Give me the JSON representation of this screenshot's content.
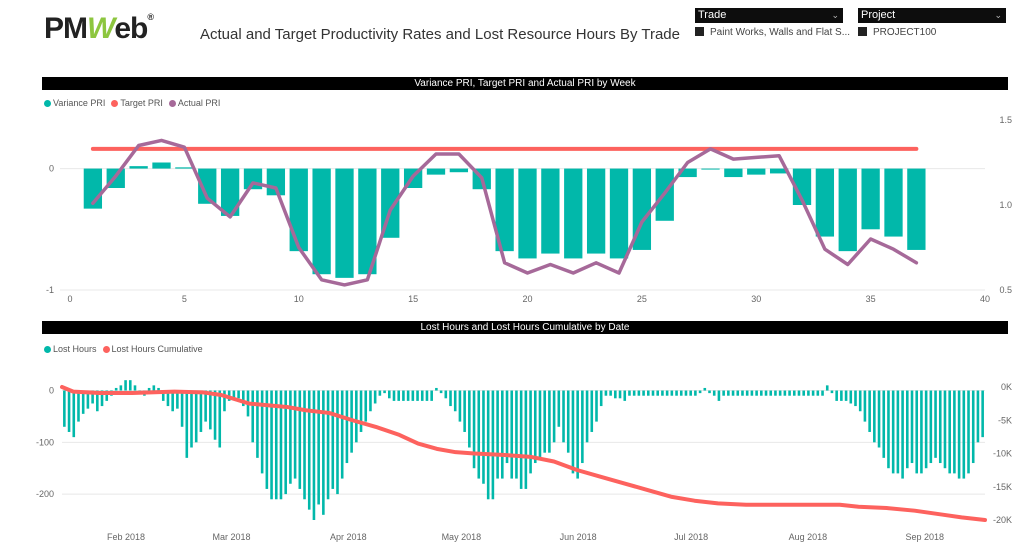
{
  "header": {
    "logo_text": "PMWeb",
    "logo_part1": "PM",
    "logo_part2": "W",
    "logo_part3": "eb",
    "logo_reg": "®",
    "title": "Actual and Target Productivity Rates and Lost Resource Hours By Trade"
  },
  "slicers": {
    "trade": {
      "label": "Trade",
      "selected": "Paint Works, Walls and Flat S..."
    },
    "project": {
      "label": "Project",
      "selected": "PROJECT100"
    }
  },
  "colors": {
    "teal": "#01b8aa",
    "red": "#fd625e",
    "purple": "#a66999"
  },
  "chart_data": [
    {
      "type": "bar+line",
      "title": "Variance PRI, Target PRI and Actual PRI by Week",
      "legend": [
        "Variance PRI",
        "Target PRI",
        "Actual PRI"
      ],
      "legend_position": "top-left",
      "x": [
        1,
        2,
        3,
        4,
        5,
        6,
        7,
        8,
        9,
        10,
        11,
        12,
        13,
        14,
        15,
        16,
        17,
        18,
        19,
        20,
        21,
        22,
        23,
        24,
        25,
        26,
        27,
        28,
        29,
        30,
        31,
        32,
        33,
        34,
        35,
        36,
        37
      ],
      "xlim": [
        0,
        40
      ],
      "x_ticks": [
        "0",
        "5",
        "10",
        "15",
        "20",
        "25",
        "30",
        "35",
        "40"
      ],
      "y_left_ticks": [
        "0",
        "-1"
      ],
      "y_right_ticks": [
        "1.5",
        "1.0",
        "0.5"
      ],
      "ylim_left": [
        -1,
        0.4
      ],
      "ylim_right": [
        0.5,
        1.5
      ],
      "series": [
        {
          "name": "Variance PRI",
          "type": "bar",
          "axis": "left",
          "values": [
            -0.33,
            -0.16,
            0.02,
            0.05,
            0.01,
            -0.29,
            -0.39,
            -0.17,
            -0.22,
            -0.68,
            -0.87,
            -0.9,
            -0.87,
            -0.57,
            -0.16,
            -0.05,
            -0.03,
            -0.17,
            -0.68,
            -0.74,
            -0.7,
            -0.74,
            -0.7,
            -0.74,
            -0.67,
            -0.43,
            -0.07,
            0.0,
            -0.07,
            -0.05,
            -0.04,
            -0.3,
            -0.56,
            -0.68,
            -0.5,
            -0.56,
            -0.67
          ]
        },
        {
          "name": "Target PRI",
          "type": "line",
          "axis": "right",
          "values": [
            1.33,
            1.33,
            1.33,
            1.33,
            1.33,
            1.33,
            1.33,
            1.33,
            1.33,
            1.33,
            1.33,
            1.33,
            1.33,
            1.33,
            1.33,
            1.33,
            1.33,
            1.33,
            1.33,
            1.33,
            1.33,
            1.33,
            1.33,
            1.33,
            1.33,
            1.33,
            1.33,
            1.33,
            1.33,
            1.33,
            1.33,
            1.33,
            1.33,
            1.33,
            1.33,
            1.33,
            1.33
          ]
        },
        {
          "name": "Actual PRI",
          "type": "line",
          "axis": "right",
          "values": [
            1.01,
            1.17,
            1.35,
            1.38,
            1.34,
            1.04,
            0.93,
            1.13,
            1.1,
            0.75,
            0.56,
            0.53,
            0.56,
            0.97,
            1.17,
            1.3,
            1.3,
            1.16,
            0.66,
            0.6,
            0.65,
            0.6,
            0.66,
            0.6,
            0.9,
            1.07,
            1.25,
            1.33,
            1.27,
            1.28,
            1.29,
            1.03,
            0.74,
            0.65,
            0.8,
            0.74,
            0.66
          ]
        }
      ]
    },
    {
      "type": "bar+line",
      "title": "Lost Hours and Lost Hours Cumulative by Date",
      "legend": [
        "Lost Hours",
        "Lost Hours Cumulative"
      ],
      "legend_position": "top-left",
      "x_start": "2018-01-15",
      "x_ticks": [
        "Feb 2018",
        "Mar 2018",
        "Apr 2018",
        "May 2018",
        "Jun 2018",
        "Jul 2018",
        "Aug 2018",
        "Sep 2018"
      ],
      "y_left_ticks": [
        "0",
        "-100",
        "-200"
      ],
      "y_right_ticks": [
        "0K",
        "-5K",
        "-10K",
        "-15K",
        "-20K"
      ],
      "ylim_left": [
        -250,
        30
      ],
      "ylim_right": [
        -20000,
        0
      ],
      "series": [
        {
          "name": "Lost Hours",
          "type": "bar",
          "axis": "left",
          "values": [
            -70,
            -80,
            -90,
            -60,
            -45,
            -35,
            -25,
            -40,
            -30,
            -20,
            -10,
            5,
            10,
            20,
            20,
            10,
            -5,
            -10,
            5,
            10,
            5,
            -20,
            -30,
            -40,
            -35,
            -70,
            -130,
            -110,
            -100,
            -80,
            -60,
            -75,
            -95,
            -110,
            -40,
            -20,
            -15,
            -15,
            -30,
            -50,
            -100,
            -130,
            -160,
            -190,
            -210,
            -210,
            -210,
            -200,
            -180,
            -170,
            -190,
            -210,
            -230,
            -250,
            -220,
            -240,
            -210,
            -190,
            -200,
            -170,
            -140,
            -120,
            -100,
            -80,
            -60,
            -40,
            -25,
            -10,
            -5,
            -15,
            -20,
            -20,
            -20,
            -20,
            -20,
            -20,
            -20,
            -20,
            -20,
            5,
            -5,
            -15,
            -30,
            -40,
            -60,
            -80,
            -110,
            -150,
            -170,
            -180,
            -210,
            -210,
            -170,
            -170,
            -140,
            -170,
            -170,
            -190,
            -190,
            -160,
            -140,
            -130,
            -120,
            -120,
            -100,
            -70,
            -100,
            -120,
            -160,
            -170,
            -140,
            -100,
            -80,
            -60,
            -30,
            -10,
            -10,
            -15,
            -15,
            -20,
            -10,
            -10,
            -10,
            -10,
            -10,
            -10,
            -10,
            -10,
            -10,
            -10,
            -10,
            -10,
            -10,
            -10,
            -10,
            -5,
            5,
            -5,
            -10,
            -20,
            -10,
            -10,
            -10,
            -10,
            -10,
            -10,
            -10,
            -10,
            -10,
            -10,
            -10,
            -10,
            -10,
            -10,
            -10,
            -10,
            -10,
            -10,
            -10,
            -10,
            -10,
            -10,
            10,
            -5,
            -20,
            -20,
            -20,
            -25,
            -30,
            -40,
            -60,
            -80,
            -100,
            -110,
            -130,
            -150,
            -160,
            -160,
            -170,
            -150,
            -140,
            -160,
            -160,
            -150,
            -140,
            -130,
            -140,
            -150,
            -160,
            -160,
            -170,
            -170,
            -160,
            -140,
            -100,
            -90
          ]
        },
        {
          "name": "Lost Hours Cumulative",
          "type": "line",
          "axis": "right",
          "points": [
            [
              0,
              0
            ],
            [
              12,
              -700
            ],
            [
              40,
              -900
            ],
            [
              75,
              -900
            ],
            [
              95,
              -800
            ],
            [
              120,
              -700
            ],
            [
              150,
              -800
            ],
            [
              170,
              -1200
            ],
            [
              200,
              -2500
            ],
            [
              240,
              -3000
            ],
            [
              260,
              -3500
            ],
            [
              285,
              -3900
            ],
            [
              310,
              -5000
            ],
            [
              335,
              -6000
            ],
            [
              360,
              -7200
            ],
            [
              380,
              -8500
            ],
            [
              400,
              -9300
            ],
            [
              420,
              -9800
            ],
            [
              440,
              -10000
            ],
            [
              470,
              -10200
            ],
            [
              500,
              -10500
            ],
            [
              525,
              -11200
            ],
            [
              550,
              -12500
            ],
            [
              575,
              -13500
            ],
            [
              600,
              -14500
            ],
            [
              625,
              -15500
            ],
            [
              650,
              -16500
            ],
            [
              675,
              -17100
            ],
            [
              700,
              -17500
            ],
            [
              730,
              -17700
            ],
            [
              760,
              -17700
            ],
            [
              800,
              -17700
            ],
            [
              830,
              -17700
            ],
            [
              850,
              -18000
            ],
            [
              880,
              -18200
            ],
            [
              910,
              -18600
            ],
            [
              940,
              -19200
            ],
            [
              960,
              -19600
            ],
            [
              985,
              -20000
            ]
          ],
          "points_unit": "day index from x_start"
        }
      ]
    }
  ]
}
